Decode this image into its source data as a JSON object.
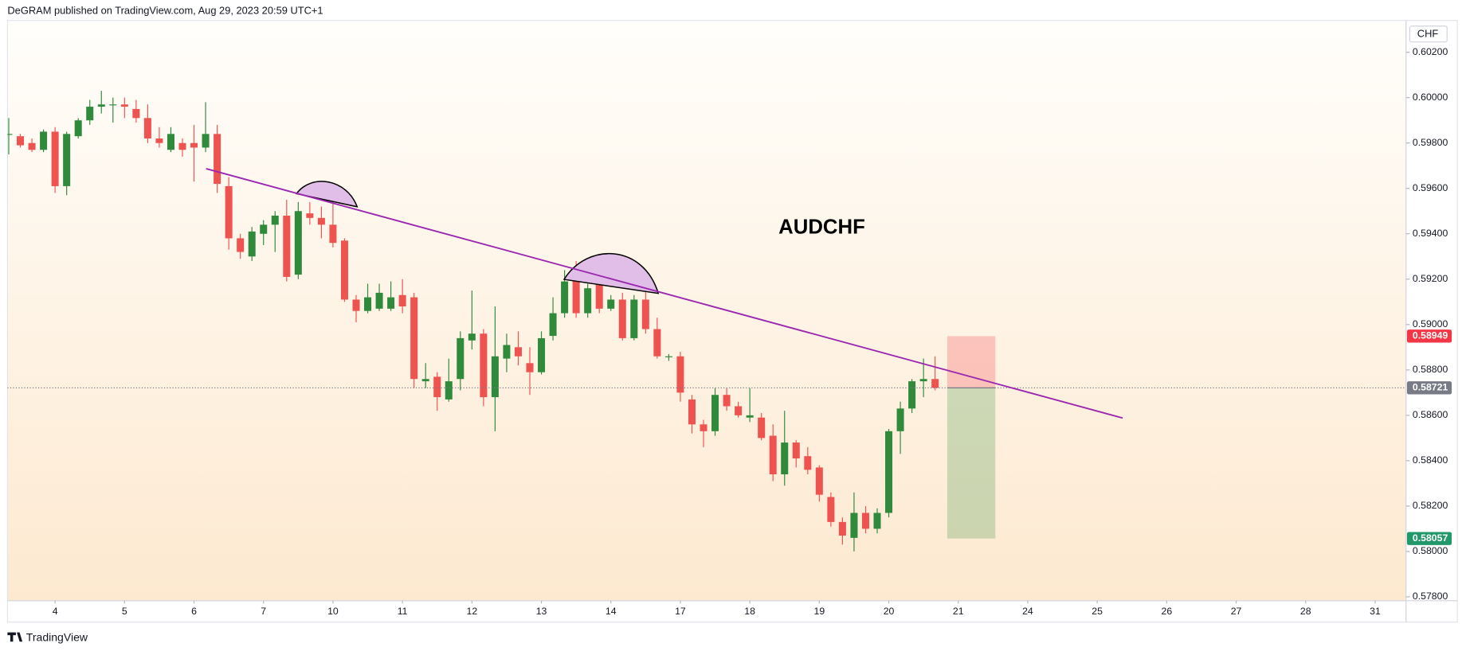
{
  "chart_data": {
    "type": "candlestick",
    "header": "DeGRAM published on TradingView.com, Aug 29, 2023 20:59 UTC+1",
    "title": "AUDCHF",
    "currency": "CHF",
    "footer": "TradingView",
    "colors": {
      "up": "#2f8a3c",
      "down": "#ef5350",
      "trendline": "#9c27b0"
    },
    "x": [
      -4,
      -3,
      -2,
      -1,
      0,
      1,
      2,
      3,
      4,
      5,
      6,
      7,
      8,
      9,
      10,
      11,
      12,
      13,
      14,
      15,
      16,
      17,
      18,
      19,
      20,
      21,
      22,
      23,
      24,
      25,
      26,
      27,
      28,
      29,
      30,
      31,
      32,
      33,
      34,
      35,
      36,
      37,
      38,
      39,
      40,
      41,
      42,
      43,
      44,
      45,
      46,
      47,
      48,
      49,
      50,
      51,
      52,
      53,
      54,
      55,
      56,
      57,
      58,
      59,
      60,
      61,
      62,
      63,
      64,
      65,
      66,
      67,
      68,
      69,
      70,
      71,
      72,
      73,
      74,
      75,
      76
    ],
    "open": [
      0.5984,
      0.5983,
      0.598,
      0.5977,
      0.5985,
      0.5961,
      0.5983,
      0.599,
      0.5996,
      0.5997,
      0.5997,
      0.5995,
      0.5991,
      0.5982,
      0.5977,
      0.598,
      0.598,
      0.5978,
      0.5984,
      0.5961,
      0.5938,
      0.593,
      0.594,
      0.5944,
      0.5948,
      0.5922,
      0.5949,
      0.5947,
      0.5944,
      0.5937,
      0.5911,
      0.5906,
      0.5907,
      0.5907,
      0.5913,
      0.5912,
      0.5875,
      0.5877,
      0.5867,
      0.5876,
      0.5893,
      0.5896,
      0.5868,
      0.5885,
      0.589,
      0.5883,
      0.5879,
      0.5895,
      0.5905,
      0.592,
      0.5905,
      0.5918,
      0.5907,
      0.5911,
      0.5894,
      0.5911,
      0.5898,
      0.5886,
      0.5886,
      0.5867,
      0.5856,
      0.5853,
      0.5869,
      0.5864,
      0.5859,
      0.5859,
      0.5851,
      0.5834,
      0.5848,
      0.5842,
      0.5837,
      0.5824,
      0.5813,
      0.5806,
      0.5817,
      0.581,
      0.5817,
      0.5853,
      0.5863,
      0.5875,
      0.5876
    ],
    "high": [
      0.5991,
      0.5984,
      0.5982,
      0.5986,
      0.5987,
      0.5985,
      0.5991,
      0.5999,
      0.6003,
      0.6,
      0.6,
      0.5999,
      0.5997,
      0.5987,
      0.5987,
      0.5982,
      0.5988,
      0.5998,
      0.5988,
      0.5965,
      0.594,
      0.5943,
      0.5946,
      0.595,
      0.5955,
      0.5954,
      0.5954,
      0.5952,
      0.5955,
      0.5938,
      0.5913,
      0.5918,
      0.5918,
      0.5919,
      0.592,
      0.5914,
      0.5883,
      0.5879,
      0.5885,
      0.5897,
      0.5915,
      0.5898,
      0.5908,
      0.5896,
      0.5897,
      0.589,
      0.5897,
      0.5912,
      0.5924,
      0.5928,
      0.5918,
      0.5921,
      0.5913,
      0.5914,
      0.5913,
      0.5915,
      0.5903,
      0.5887,
      0.5888,
      0.5869,
      0.5858,
      0.5872,
      0.5872,
      0.5866,
      0.5872,
      0.5861,
      0.5856,
      0.5862,
      0.5849,
      0.5846,
      0.5838,
      0.5826,
      0.5815,
      0.5826,
      0.582,
      0.5819,
      0.5854,
      0.5866,
      0.5876,
      0.5885,
      0.5886
    ],
    "low": [
      0.5975,
      0.5978,
      0.5976,
      0.5976,
      0.5958,
      0.5957,
      0.5982,
      0.5988,
      0.5993,
      0.5989,
      0.5991,
      0.5989,
      0.598,
      0.5978,
      0.5976,
      0.5974,
      0.5963,
      0.5976,
      0.5958,
      0.5933,
      0.5929,
      0.5928,
      0.5935,
      0.5932,
      0.5919,
      0.592,
      0.5944,
      0.5938,
      0.5934,
      0.591,
      0.5901,
      0.5905,
      0.5906,
      0.5906,
      0.5905,
      0.5872,
      0.5872,
      0.5862,
      0.5866,
      0.5871,
      0.5889,
      0.5864,
      0.5853,
      0.5879,
      0.5882,
      0.5869,
      0.5878,
      0.5893,
      0.5903,
      0.5903,
      0.5903,
      0.5905,
      0.5906,
      0.5893,
      0.5893,
      0.5896,
      0.5885,
      0.5884,
      0.5866,
      0.5852,
      0.5846,
      0.5851,
      0.5862,
      0.5859,
      0.5857,
      0.5849,
      0.5831,
      0.5829,
      0.5837,
      0.5834,
      0.5822,
      0.5811,
      0.5803,
      0.58,
      0.5808,
      0.5808,
      0.5815,
      0.5843,
      0.5861,
      0.5868,
      0.5871
    ],
    "close": [
      0.5984,
      0.5979,
      0.5977,
      0.5985,
      0.5961,
      0.5984,
      0.599,
      0.5996,
      0.5997,
      0.5997,
      0.5996,
      0.5991,
      0.5982,
      0.598,
      0.5984,
      0.5977,
      0.5978,
      0.5984,
      0.5962,
      0.5938,
      0.5932,
      0.5941,
      0.5944,
      0.5948,
      0.5921,
      0.595,
      0.5947,
      0.5944,
      0.5936,
      0.5911,
      0.5906,
      0.5912,
      0.5914,
      0.5912,
      0.5908,
      0.5876,
      0.5876,
      0.5868,
      0.5875,
      0.5894,
      0.5896,
      0.5868,
      0.5886,
      0.5891,
      0.5886,
      0.5879,
      0.5894,
      0.5905,
      0.5919,
      0.5905,
      0.5916,
      0.5907,
      0.5911,
      0.5894,
      0.5911,
      0.5898,
      0.5886,
      0.5886,
      0.587,
      0.5856,
      0.5853,
      0.5869,
      0.5864,
      0.586,
      0.586,
      0.585,
      0.5834,
      0.5848,
      0.5841,
      0.5836,
      0.5825,
      0.5813,
      0.5807,
      0.5817,
      0.581,
      0.5817,
      0.5853,
      0.5863,
      0.5875,
      0.5876,
      0.58721
    ],
    "xlim": [
      -4.11,
      116.67
    ],
    "xticks": [
      {
        "value": 0,
        "label": "4"
      },
      {
        "value": 6,
        "label": "5"
      },
      {
        "value": 12,
        "label": "6"
      },
      {
        "value": 18,
        "label": "7"
      },
      {
        "value": 24,
        "label": "10"
      },
      {
        "value": 30,
        "label": "11"
      },
      {
        "value": 36,
        "label": "12"
      },
      {
        "value": 42,
        "label": "13"
      },
      {
        "value": 48,
        "label": "14"
      },
      {
        "value": 54,
        "label": "17"
      },
      {
        "value": 60,
        "label": "18"
      },
      {
        "value": 66,
        "label": "19"
      },
      {
        "value": 72,
        "label": "20"
      },
      {
        "value": 78,
        "label": "21"
      },
      {
        "value": 84,
        "label": "24"
      },
      {
        "value": 90,
        "label": "25"
      },
      {
        "value": 96,
        "label": "26"
      },
      {
        "value": 102,
        "label": "27"
      },
      {
        "value": 108,
        "label": "28"
      },
      {
        "value": 114,
        "label": "31"
      }
    ],
    "ylim": [
      0.57783,
      0.6034
    ],
    "yticks": [
      {
        "value": 0.578,
        "label": "0.57800"
      },
      {
        "value": 0.58,
        "label": "0.58000"
      },
      {
        "value": 0.582,
        "label": "0.58200"
      },
      {
        "value": 0.584,
        "label": "0.58400"
      },
      {
        "value": 0.586,
        "label": "0.58600"
      },
      {
        "value": 0.588,
        "label": "0.58800"
      },
      {
        "value": 0.59,
        "label": "0.59000"
      },
      {
        "value": 0.592,
        "label": "0.59200"
      },
      {
        "value": 0.594,
        "label": "0.59400"
      },
      {
        "value": 0.596,
        "label": "0.59600"
      },
      {
        "value": 0.598,
        "label": "0.59800"
      },
      {
        "value": 0.6,
        "label": "0.60000"
      },
      {
        "value": 0.602,
        "label": "0.60200"
      }
    ],
    "grid": false,
    "trendline": {
      "x": [
        13.04,
        92.2
      ],
      "y": [
        0.59687,
        0.58588
      ]
    },
    "position": {
      "x": [
        77.05,
        81.2
      ],
      "entry": 0.58721,
      "stop": 0.58949,
      "target": 0.58057
    },
    "price_labels": [
      {
        "value": 0.58949,
        "label": "0.58949",
        "color": "#f23645"
      },
      {
        "value": 0.58721,
        "label": "0.58721",
        "color": "#787b86"
      },
      {
        "value": 0.58057,
        "label": "0.58057",
        "color": "#22976a"
      }
    ]
  }
}
